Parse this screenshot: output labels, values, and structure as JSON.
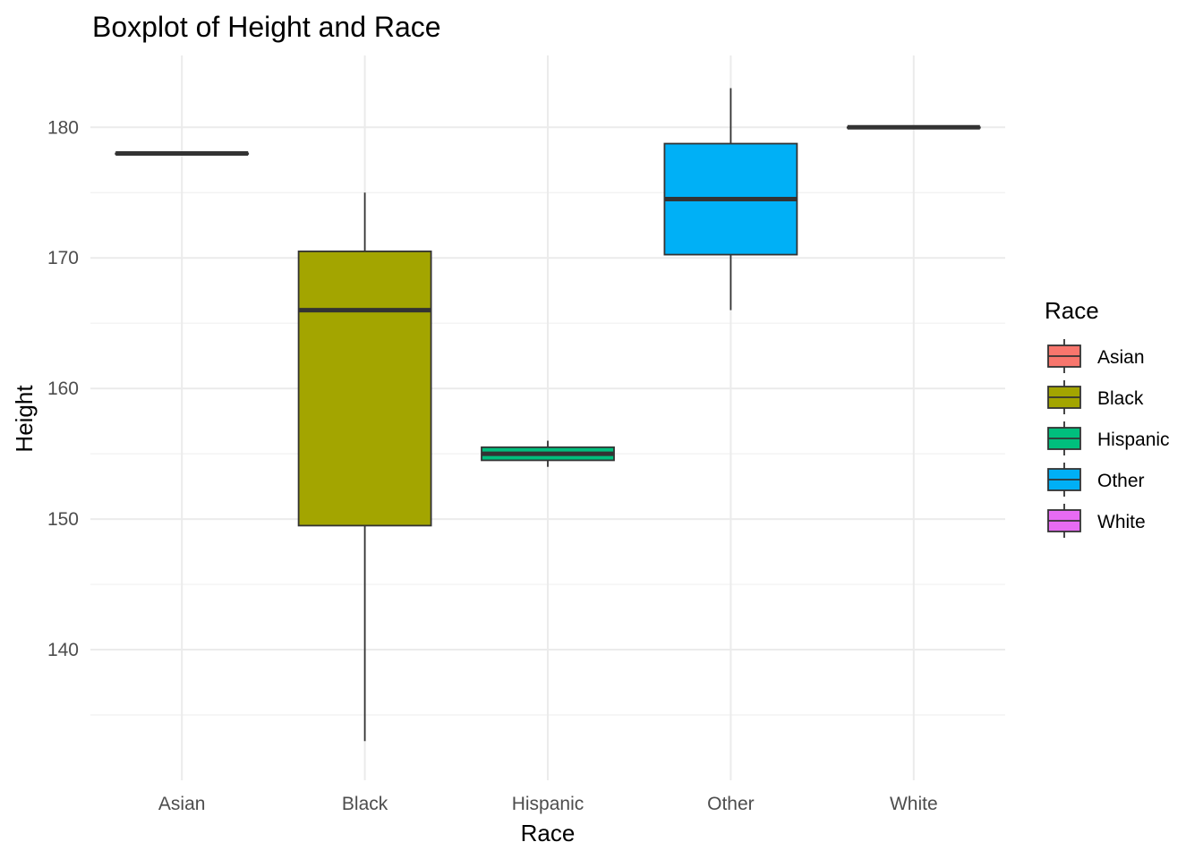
{
  "chart_data": {
    "type": "boxplot",
    "title": "Boxplot of Height and Race",
    "xlabel": "Race",
    "ylabel": "Height",
    "ylim": [
      130,
      185.5
    ],
    "yticks": [
      140,
      150,
      160,
      170,
      180
    ],
    "grid": true,
    "legend": {
      "title": "Race",
      "placement": "right"
    },
    "categories": [
      "Asian",
      "Black",
      "Hispanic",
      "Other",
      "White"
    ],
    "colors": {
      "Asian": "#F8766D",
      "Black": "#A3A500",
      "Hispanic": "#00BF7D",
      "Other": "#00B0F6",
      "White": "#E76BF3"
    },
    "boxes": [
      {
        "category": "Asian",
        "min": 178,
        "q1": 178,
        "median": 178,
        "q3": 178,
        "max": 178
      },
      {
        "category": "Black",
        "min": 133,
        "q1": 149.5,
        "median": 166,
        "q3": 170.5,
        "max": 175
      },
      {
        "category": "Hispanic",
        "min": 154,
        "q1": 154.5,
        "median": 155,
        "q3": 155.5,
        "max": 156
      },
      {
        "category": "Other",
        "min": 166,
        "q1": 170.25,
        "median": 174.5,
        "q3": 178.75,
        "max": 183
      },
      {
        "category": "White",
        "min": 180,
        "q1": 180,
        "median": 180,
        "q3": 180,
        "max": 180
      }
    ]
  }
}
